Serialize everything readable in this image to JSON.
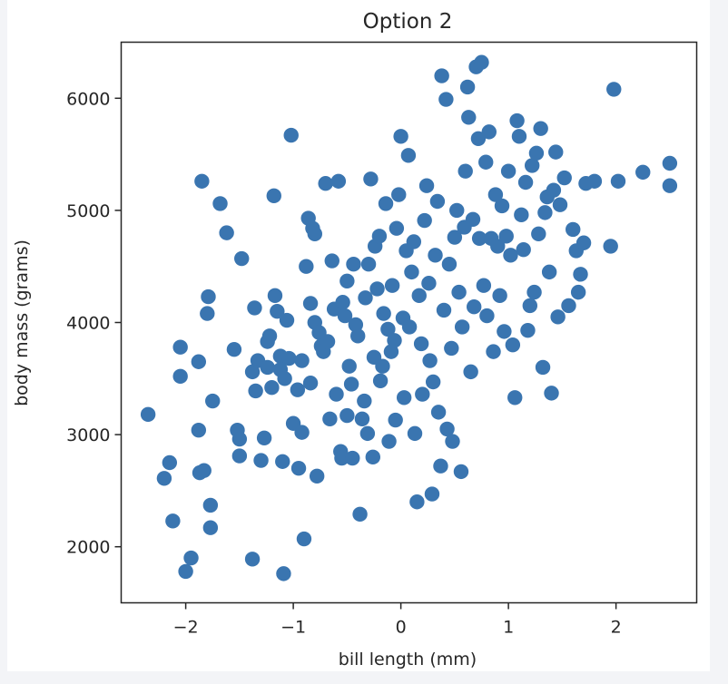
{
  "chart_data": {
    "type": "scatter",
    "title": "Option 2",
    "xlabel": "bill length (mm)",
    "ylabel": "body mass (grams)",
    "xlim": [
      -2.6,
      2.75
    ],
    "ylim": [
      1500,
      6500
    ],
    "xticks": [
      -2,
      -1,
      0,
      1,
      2
    ],
    "xtick_labels": [
      "−2",
      "−1",
      "0",
      "1",
      "2"
    ],
    "yticks": [
      2000,
      3000,
      4000,
      5000,
      6000
    ],
    "ytick_labels": [
      "2000",
      "3000",
      "4000",
      "5000",
      "6000"
    ],
    "grid": false,
    "legend": false,
    "color": "#3a75b0",
    "series": [
      {
        "points": [
          [
            -2.35,
            3180
          ],
          [
            -2.2,
            2610
          ],
          [
            -2.15,
            2750
          ],
          [
            -2.12,
            2230
          ],
          [
            -2.05,
            3520
          ],
          [
            -2.05,
            3780
          ],
          [
            -2.0,
            1780
          ],
          [
            -1.95,
            1900
          ],
          [
            -1.88,
            3650
          ],
          [
            -1.88,
            3040
          ],
          [
            -1.87,
            2660
          ],
          [
            -1.85,
            5260
          ],
          [
            -1.83,
            2680
          ],
          [
            -1.8,
            4080
          ],
          [
            -1.79,
            4230
          ],
          [
            -1.77,
            2370
          ],
          [
            -1.77,
            2170
          ],
          [
            -1.75,
            3300
          ],
          [
            -1.68,
            5060
          ],
          [
            -1.62,
            4800
          ],
          [
            -1.55,
            3760
          ],
          [
            -1.52,
            3040
          ],
          [
            -1.5,
            2960
          ],
          [
            -1.5,
            2810
          ],
          [
            -1.48,
            4570
          ],
          [
            -1.38,
            1890
          ],
          [
            -1.38,
            3560
          ],
          [
            -1.36,
            4130
          ],
          [
            -1.35,
            3390
          ],
          [
            -1.33,
            3660
          ],
          [
            -1.3,
            2770
          ],
          [
            -1.27,
            2970
          ],
          [
            -1.24,
            3830
          ],
          [
            -1.24,
            3600
          ],
          [
            -1.22,
            3880
          ],
          [
            -1.2,
            3420
          ],
          [
            -1.18,
            5130
          ],
          [
            -1.17,
            4240
          ],
          [
            -1.15,
            4100
          ],
          [
            -1.12,
            3700
          ],
          [
            -1.12,
            3580
          ],
          [
            -1.1,
            2760
          ],
          [
            -1.09,
            1760
          ],
          [
            -1.08,
            3500
          ],
          [
            -1.06,
            4020
          ],
          [
            -1.04,
            3680
          ],
          [
            -1.02,
            5670
          ],
          [
            -1.0,
            3100
          ],
          [
            -0.96,
            3400
          ],
          [
            -0.95,
            2700
          ],
          [
            -0.92,
            3660
          ],
          [
            -0.92,
            3020
          ],
          [
            -0.9,
            2070
          ],
          [
            -0.88,
            4500
          ],
          [
            -0.86,
            4930
          ],
          [
            -0.84,
            3460
          ],
          [
            -0.84,
            4170
          ],
          [
            -0.82,
            4840
          ],
          [
            -0.8,
            4790
          ],
          [
            -0.8,
            4000
          ],
          [
            -0.78,
            2630
          ],
          [
            -0.76,
            3910
          ],
          [
            -0.74,
            3790
          ],
          [
            -0.72,
            3740
          ],
          [
            -0.7,
            5240
          ],
          [
            -0.68,
            3830
          ],
          [
            -0.66,
            3140
          ],
          [
            -0.64,
            4550
          ],
          [
            -0.62,
            4120
          ],
          [
            -0.6,
            3360
          ],
          [
            -0.58,
            5260
          ],
          [
            -0.56,
            2850
          ],
          [
            -0.55,
            2790
          ],
          [
            -0.54,
            4180
          ],
          [
            -0.52,
            4060
          ],
          [
            -0.5,
            3170
          ],
          [
            -0.5,
            4370
          ],
          [
            -0.48,
            3610
          ],
          [
            -0.46,
            3450
          ],
          [
            -0.45,
            2790
          ],
          [
            -0.44,
            4520
          ],
          [
            -0.42,
            3980
          ],
          [
            -0.4,
            3880
          ],
          [
            -0.38,
            2290
          ],
          [
            -0.36,
            3140
          ],
          [
            -0.34,
            3300
          ],
          [
            -0.33,
            4220
          ],
          [
            -0.31,
            3010
          ],
          [
            -0.3,
            4520
          ],
          [
            -0.28,
            5280
          ],
          [
            -0.26,
            2800
          ],
          [
            -0.25,
            3690
          ],
          [
            -0.24,
            4680
          ],
          [
            -0.22,
            4300
          ],
          [
            -0.2,
            4770
          ],
          [
            -0.19,
            3480
          ],
          [
            -0.17,
            3610
          ],
          [
            -0.16,
            4080
          ],
          [
            -0.14,
            5060
          ],
          [
            -0.12,
            3940
          ],
          [
            -0.11,
            2940
          ],
          [
            -0.09,
            3740
          ],
          [
            -0.08,
            4330
          ],
          [
            -0.06,
            3840
          ],
          [
            -0.05,
            3130
          ],
          [
            -0.04,
            4840
          ],
          [
            -0.02,
            5140
          ],
          [
            0.0,
            5660
          ],
          [
            0.02,
            4040
          ],
          [
            0.03,
            3330
          ],
          [
            0.05,
            4640
          ],
          [
            0.07,
            5490
          ],
          [
            0.08,
            3960
          ],
          [
            0.1,
            4450
          ],
          [
            0.12,
            4720
          ],
          [
            0.13,
            3010
          ],
          [
            0.15,
            2400
          ],
          [
            0.17,
            4240
          ],
          [
            0.19,
            3810
          ],
          [
            0.2,
            3360
          ],
          [
            0.22,
            4910
          ],
          [
            0.24,
            5220
          ],
          [
            0.26,
            4350
          ],
          [
            0.27,
            3660
          ],
          [
            0.29,
            2470
          ],
          [
            0.3,
            3470
          ],
          [
            0.32,
            4600
          ],
          [
            0.34,
            5080
          ],
          [
            0.35,
            3200
          ],
          [
            0.37,
            2720
          ],
          [
            0.38,
            6200
          ],
          [
            0.4,
            4110
          ],
          [
            0.42,
            5990
          ],
          [
            0.43,
            3050
          ],
          [
            0.45,
            4520
          ],
          [
            0.47,
            3770
          ],
          [
            0.48,
            2940
          ],
          [
            0.5,
            4760
          ],
          [
            0.52,
            5000
          ],
          [
            0.54,
            4270
          ],
          [
            0.56,
            2670
          ],
          [
            0.57,
            3960
          ],
          [
            0.59,
            4850
          ],
          [
            0.6,
            5350
          ],
          [
            0.62,
            6100
          ],
          [
            0.63,
            5830
          ],
          [
            0.65,
            3560
          ],
          [
            0.67,
            4920
          ],
          [
            0.68,
            4140
          ],
          [
            0.7,
            6280
          ],
          [
            0.72,
            5640
          ],
          [
            0.73,
            4750
          ],
          [
            0.75,
            6320
          ],
          [
            0.77,
            4330
          ],
          [
            0.79,
            5430
          ],
          [
            0.8,
            4060
          ],
          [
            0.82,
            5700
          ],
          [
            0.84,
            4750
          ],
          [
            0.86,
            3740
          ],
          [
            0.88,
            5140
          ],
          [
            0.9,
            4680
          ],
          [
            0.92,
            4240
          ],
          [
            0.94,
            5040
          ],
          [
            0.96,
            3920
          ],
          [
            0.98,
            4770
          ],
          [
            1.0,
            5350
          ],
          [
            1.02,
            4600
          ],
          [
            1.04,
            3800
          ],
          [
            1.06,
            3330
          ],
          [
            1.08,
            5800
          ],
          [
            1.1,
            5660
          ],
          [
            1.12,
            4960
          ],
          [
            1.14,
            4650
          ],
          [
            1.16,
            5250
          ],
          [
            1.18,
            3930
          ],
          [
            1.2,
            4150
          ],
          [
            1.22,
            5400
          ],
          [
            1.24,
            4270
          ],
          [
            1.26,
            5510
          ],
          [
            1.28,
            4790
          ],
          [
            1.3,
            5730
          ],
          [
            1.32,
            3600
          ],
          [
            1.34,
            4980
          ],
          [
            1.36,
            5120
          ],
          [
            1.38,
            4450
          ],
          [
            1.4,
            3370
          ],
          [
            1.42,
            5180
          ],
          [
            1.44,
            5520
          ],
          [
            1.46,
            4050
          ],
          [
            1.48,
            5050
          ],
          [
            1.52,
            5290
          ],
          [
            1.56,
            4150
          ],
          [
            1.6,
            4830
          ],
          [
            1.63,
            4640
          ],
          [
            1.65,
            4270
          ],
          [
            1.67,
            4430
          ],
          [
            1.7,
            4710
          ],
          [
            1.72,
            5240
          ],
          [
            1.8,
            5260
          ],
          [
            1.95,
            4680
          ],
          [
            1.98,
            6080
          ],
          [
            2.02,
            5260
          ],
          [
            2.25,
            5340
          ],
          [
            2.5,
            5220
          ],
          [
            2.5,
            5420
          ]
        ]
      }
    ]
  }
}
